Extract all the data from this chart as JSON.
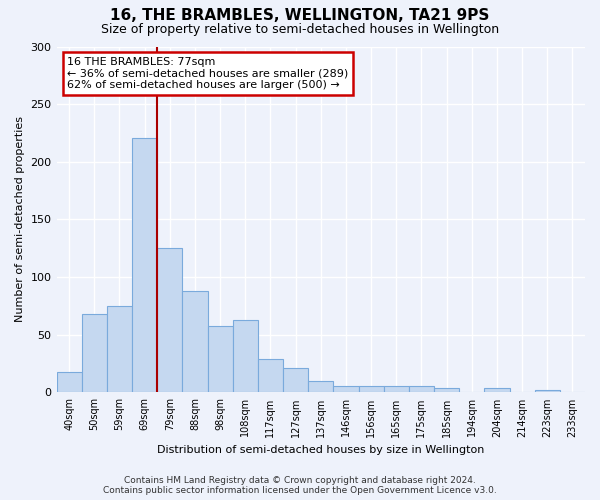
{
  "title": "16, THE BRAMBLES, WELLINGTON, TA21 9PS",
  "subtitle": "Size of property relative to semi-detached houses in Wellington",
  "xlabel": "Distribution of semi-detached houses by size in Wellington",
  "ylabel": "Number of semi-detached properties",
  "categories": [
    "40sqm",
    "50sqm",
    "59sqm",
    "69sqm",
    "79sqm",
    "88sqm",
    "98sqm",
    "108sqm",
    "117sqm",
    "127sqm",
    "137sqm",
    "146sqm",
    "156sqm",
    "165sqm",
    "175sqm",
    "185sqm",
    "194sqm",
    "204sqm",
    "214sqm",
    "223sqm",
    "233sqm"
  ],
  "values": [
    18,
    68,
    75,
    221,
    125,
    88,
    58,
    63,
    29,
    21,
    10,
    6,
    6,
    6,
    6,
    4,
    0,
    4,
    0,
    2,
    0
  ],
  "bar_color": "#c5d8f0",
  "bar_edge_color": "#7aaadc",
  "annotation_text_line1": "16 THE BRAMBLES: 77sqm",
  "annotation_text_line2": "← 36% of semi-detached houses are smaller (289)",
  "annotation_text_line3": "62% of semi-detached houses are larger (500) →",
  "annotation_box_color": "white",
  "annotation_box_edge": "#cc0000",
  "vline_color": "#aa0000",
  "vline_x_index": 3.5,
  "ylim": [
    0,
    300
  ],
  "yticks": [
    0,
    50,
    100,
    150,
    200,
    250,
    300
  ],
  "footer_line1": "Contains HM Land Registry data © Crown copyright and database right 2024.",
  "footer_line2": "Contains public sector information licensed under the Open Government Licence v3.0.",
  "background_color": "#eef2fb",
  "grid_color": "#ffffff",
  "title_fontsize": 11,
  "subtitle_fontsize": 9,
  "ylabel_fontsize": 8,
  "xlabel_fontsize": 8,
  "tick_fontsize": 7,
  "footer_fontsize": 6.5,
  "annotation_fontsize": 8
}
